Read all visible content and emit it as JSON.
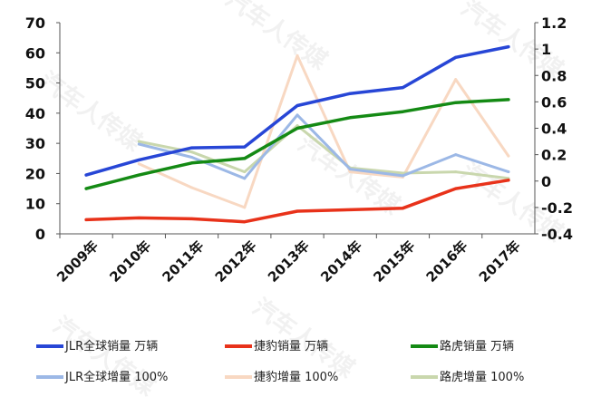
{
  "chart_data": {
    "type": "line",
    "categories": [
      "2009年",
      "2010年",
      "2011年",
      "2012年",
      "2013年",
      "2014年",
      "2015年",
      "2016年",
      "2017年"
    ],
    "left_axis": {
      "ylim": [
        0,
        70
      ],
      "ticks": [
        "0",
        "10",
        "20",
        "30",
        "40",
        "50",
        "60",
        "70"
      ],
      "tick_values": [
        0,
        10,
        20,
        30,
        40,
        50,
        60,
        70
      ]
    },
    "right_axis": {
      "ylim": [
        -0.4,
        1.2
      ],
      "ticks": [
        "-0.4",
        "-0.2",
        "0",
        "0.2",
        "0.4",
        "0.6",
        "0.8",
        "1",
        "1.2"
      ],
      "tick_values": [
        -0.4,
        -0.2,
        0,
        0.2,
        0.4,
        0.6,
        0.8,
        1,
        1.2
      ]
    },
    "series": [
      {
        "name": "JLR全球销量 万辆",
        "axis": "left",
        "color": "#2746d6",
        "values": [
          19.5,
          24.5,
          28.5,
          28.8,
          42.5,
          46.5,
          48.5,
          58.5,
          62
        ]
      },
      {
        "name": "捷豹销量 万辆",
        "axis": "left",
        "color": "#e8321a",
        "values": [
          4.7,
          5.3,
          5.0,
          4.0,
          7.5,
          8.0,
          8.5,
          15.0,
          17.8
        ]
      },
      {
        "name": "路虎销量 万辆",
        "axis": "left",
        "color": "#148a14",
        "values": [
          15,
          19.5,
          23.5,
          25,
          35,
          38.5,
          40.5,
          43.5,
          44.5
        ]
      },
      {
        "name": "JLR全球增量 100%",
        "axis": "right",
        "color": "#9cb8e6",
        "values": [
          null,
          0.28,
          0.18,
          0.02,
          0.5,
          0.09,
          0.04,
          0.2,
          0.07
        ]
      },
      {
        "name": "捷豹增量 100%",
        "axis": "right",
        "color": "#f8d8c2",
        "values": [
          null,
          0.13,
          -0.05,
          -0.2,
          0.95,
          0.07,
          0.03,
          0.77,
          0.19
        ]
      },
      {
        "name": "路虎增量 100%",
        "axis": "right",
        "color": "#c9d7ad",
        "values": [
          null,
          0.3,
          0.22,
          0.07,
          0.42,
          0.1,
          0.06,
          0.07,
          0.02
        ]
      }
    ],
    "grid": false,
    "legend": "bottom"
  },
  "watermark": "汽车人传媒"
}
